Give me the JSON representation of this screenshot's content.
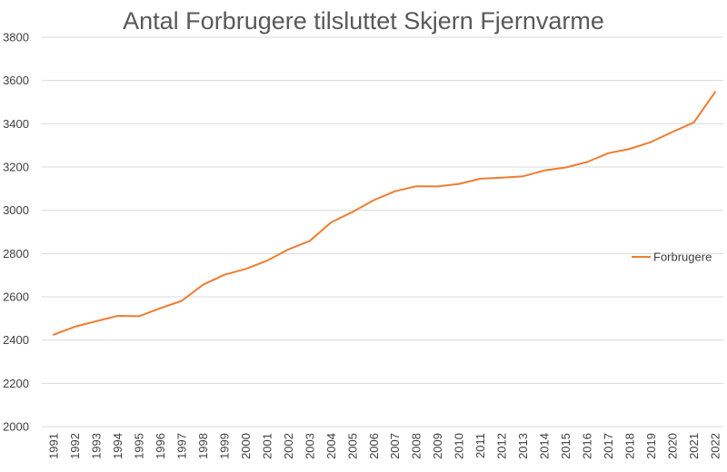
{
  "chart_data": {
    "type": "line",
    "title": "Antal Forbrugere tilsluttet Skjern Fjernvarme",
    "xlabel": "",
    "ylabel": "",
    "ylim": [
      2000,
      3800
    ],
    "yticks": [
      2000,
      2200,
      2400,
      2600,
      2800,
      3000,
      3200,
      3400,
      3600,
      3800
    ],
    "grid": true,
    "legend_position": "right",
    "categories": [
      "1991",
      "1992",
      "1993",
      "1994",
      "1995",
      "1996",
      "1997",
      "1998",
      "1999",
      "2000",
      "2001",
      "2002",
      "2003",
      "2004",
      "2005",
      "2006",
      "2007",
      "2008",
      "2009",
      "2010",
      "2011",
      "2012",
      "2013",
      "2014",
      "2015",
      "2016",
      "2017",
      "2018",
      "2019",
      "2020",
      "2021",
      "2022"
    ],
    "series": [
      {
        "name": "Forbrugere",
        "color": "#ED7D31",
        "values": [
          2425,
          2462,
          2487,
          2512,
          2510,
          2547,
          2581,
          2656,
          2702,
          2729,
          2767,
          2819,
          2858,
          2944,
          2992,
          3047,
          3088,
          3111,
          3110,
          3122,
          3146,
          3151,
          3157,
          3184,
          3198,
          3223,
          3264,
          3284,
          3316,
          3362,
          3406,
          3547
        ]
      }
    ]
  }
}
